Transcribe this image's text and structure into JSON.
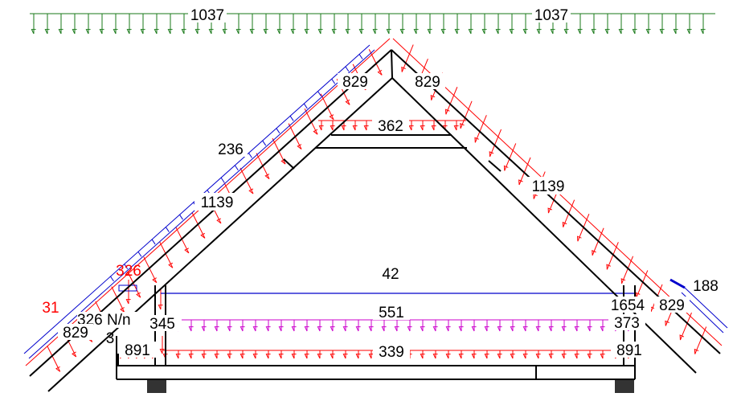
{
  "loads": {
    "snow_left": "1037",
    "snow_right": "1037",
    "apex_left": "829",
    "apex_right": "829",
    "collar": "362",
    "wind_upper_left": "236",
    "roof_left": "1139",
    "roof_right": "1139",
    "eave_left_red": "326",
    "ceiling_blue": "42",
    "far_right_blue": "188",
    "left_small_red": "31",
    "left_unit_label": "326 N/n",
    "right_eave_1654": "1654",
    "right_eave_829": "829",
    "left_eave_829": "829",
    "post_left": "345",
    "floor_magenta": "551",
    "floor_magenta_right": "373",
    "left_partial": "3",
    "floor_red": "339",
    "floor_left": "891",
    "floor_right": "891"
  },
  "colors": {
    "snow": "#1a7a1a",
    "dead": "#ff0000",
    "wind": "#0000cc",
    "live": "#cc00cc",
    "structure": "#000000"
  }
}
